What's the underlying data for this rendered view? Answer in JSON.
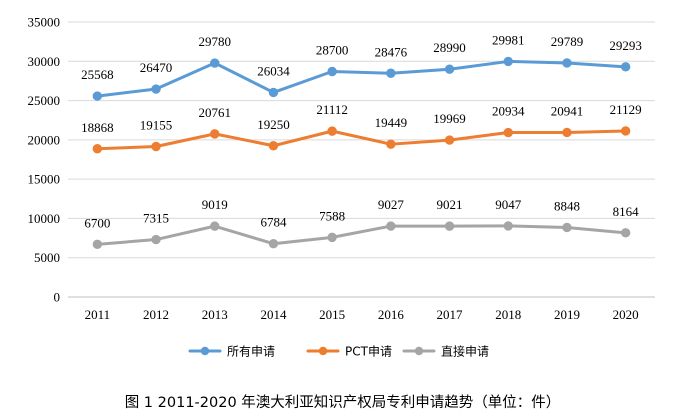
{
  "caption": "图 1  2011-2020 年澳大利亚知识产权局专利申请趋势（单位：件）",
  "chart_data": {
    "type": "line",
    "title": "",
    "xlabel": "",
    "ylabel": "",
    "categories": [
      "2011",
      "2012",
      "2013",
      "2014",
      "2015",
      "2016",
      "2017",
      "2018",
      "2019",
      "2020"
    ],
    "ylim": [
      0,
      35000
    ],
    "yticks": [
      0,
      5000,
      10000,
      15000,
      20000,
      25000,
      30000,
      35000
    ],
    "grid": true,
    "legend_position": "bottom",
    "series": [
      {
        "name": "所有申请",
        "color": "#5B9BD5",
        "values": [
          25568,
          26470,
          29780,
          26034,
          28700,
          28476,
          28990,
          29981,
          29789,
          29293
        ]
      },
      {
        "name": "PCT申请",
        "color": "#ED7D31",
        "values": [
          18868,
          19155,
          20761,
          19250,
          21112,
          19449,
          19969,
          20934,
          20941,
          21129
        ]
      },
      {
        "name": "直接申请",
        "color": "#A5A5A5",
        "values": [
          6700,
          7315,
          9019,
          6784,
          7588,
          9027,
          9021,
          9047,
          8848,
          8164
        ]
      }
    ]
  }
}
